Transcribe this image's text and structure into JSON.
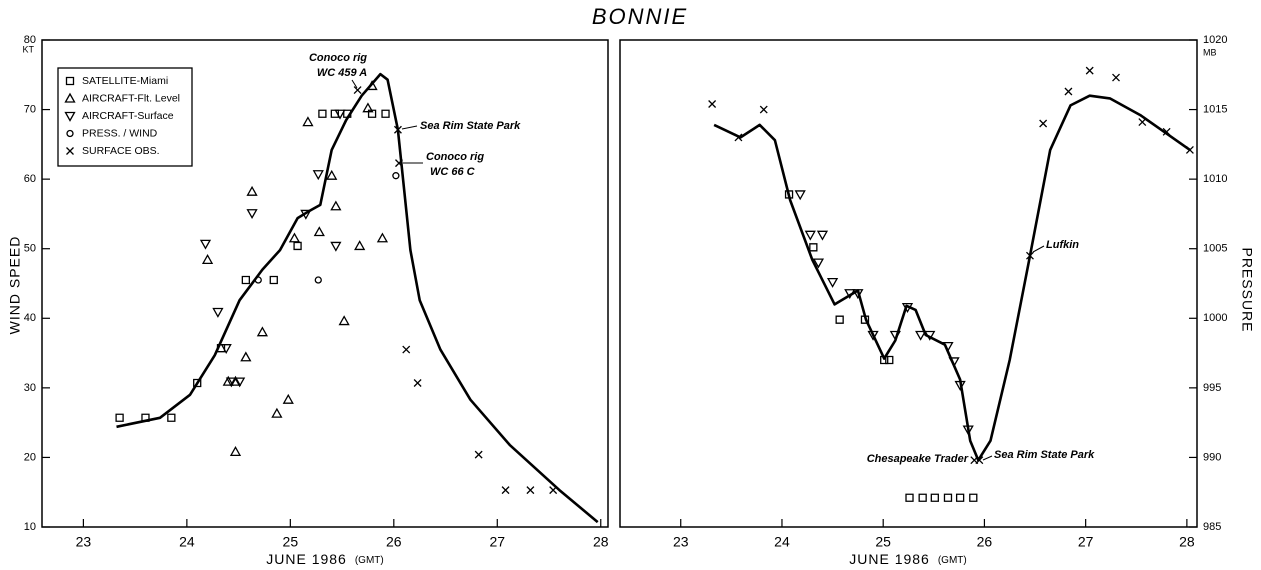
{
  "title": "BONNIE",
  "chart_data": [
    {
      "type": "scatter",
      "xlabel": "JUNE 1986",
      "xlabel_unit": "(GMT)",
      "ylabel": "WIND SPEED",
      "yunit": "KT",
      "xlim": [
        22.6,
        28.07
      ],
      "xticks": [
        23,
        24,
        25,
        26,
        27,
        28
      ],
      "ylim": [
        10,
        80
      ],
      "yticks": [
        10,
        20,
        30,
        40,
        50,
        60,
        70,
        80
      ],
      "yaxis_side": "left",
      "legend": "upper left",
      "series": [
        {
          "name": "SATELLITE-Miami",
          "marker": "square",
          "color": "#000000",
          "x": [
            23.35,
            23.6,
            23.85,
            24.1,
            24.33,
            24.57,
            24.84,
            25.07,
            25.31,
            25.43,
            25.55,
            25.79,
            25.92
          ],
          "values": [
            25.7,
            25.7,
            25.7,
            30.7,
            35.7,
            45.5,
            45.5,
            50.4,
            69.4,
            69.4,
            69.4,
            69.4,
            69.4
          ]
        },
        {
          "name": "AIRCRAFT-Flt. Level",
          "marker": "triangle-up",
          "color": "#000000",
          "x": [
            24.2,
            24.4,
            24.47,
            24.47,
            24.57,
            24.63,
            24.73,
            24.87,
            24.98,
            25.04,
            25.17,
            25.28,
            25.4,
            25.44,
            25.52,
            25.67,
            25.75,
            25.79,
            25.89
          ],
          "values": [
            48.4,
            30.9,
            30.9,
            20.8,
            34.4,
            58.2,
            38.0,
            26.3,
            28.3,
            51.5,
            68.2,
            52.4,
            60.5,
            56.1,
            39.6,
            50.4,
            70.2,
            73.4,
            51.5
          ]
        },
        {
          "name": "AIRCRAFT-Surface",
          "marker": "triangle-down",
          "color": "#000000",
          "x": [
            24.18,
            24.3,
            24.38,
            24.43,
            24.51,
            24.63,
            25.15,
            25.27,
            25.48,
            25.44
          ],
          "values": [
            50.7,
            40.9,
            35.7,
            30.9,
            30.9,
            55.1,
            55.0,
            60.7,
            69.4,
            50.4
          ]
        },
        {
          "name": "PRESS. / WIND",
          "marker": "circle",
          "color": "#000000",
          "x": [
            24.69,
            25.27,
            26.02
          ],
          "values": [
            45.5,
            45.5,
            60.5
          ]
        },
        {
          "name": "SURFACE OBS.",
          "marker": "x",
          "color": "#000000",
          "x": [
            25.65,
            26.04,
            26.05,
            26.12,
            26.23,
            26.82,
            27.08,
            27.32,
            27.54
          ],
          "values": [
            72.8,
            67.1,
            62.3,
            35.5,
            30.7,
            20.4,
            15.3,
            15.3,
            15.3
          ]
        }
      ],
      "curve": {
        "color": "#000000",
        "x": [
          23.32,
          23.74,
          24.03,
          24.27,
          24.51,
          24.73,
          24.9,
          25.07,
          25.17,
          25.29,
          25.4,
          25.54,
          25.69,
          25.87,
          25.94,
          26.04,
          26.1,
          26.16,
          26.25,
          26.45,
          26.74,
          27.12,
          27.6,
          27.97
        ],
        "values": [
          24.4,
          25.7,
          29.0,
          34.7,
          42.6,
          47.0,
          49.8,
          54.4,
          55.3,
          56.3,
          64.2,
          68.5,
          72.0,
          75.1,
          74.3,
          67.1,
          58.4,
          49.8,
          42.6,
          35.5,
          28.3,
          21.8,
          15.3,
          10.7
        ]
      },
      "annotations": [
        "Conoco rig",
        "WC 459 A",
        "Sea Rim State Park",
        "Conoco rig",
        "WC 66 C"
      ]
    },
    {
      "type": "scatter",
      "xlabel": "JUNE 1986",
      "xlabel_unit": "(GMT)",
      "ylabel": "PRESSURE",
      "yunit": "MB",
      "xlim": [
        22.4,
        28.1
      ],
      "xticks": [
        23,
        24,
        25,
        26,
        27,
        28
      ],
      "ylim": [
        985,
        1020
      ],
      "yticks": [
        985,
        990,
        995,
        1000,
        1005,
        1010,
        1015,
        1020
      ],
      "yaxis_side": "right",
      "series": [
        {
          "marker": "square",
          "color": "#000000",
          "x": [
            24.07,
            24.31,
            24.57,
            24.82,
            25.01,
            25.06,
            25.26,
            25.39,
            25.51,
            25.64,
            25.76,
            25.89
          ],
          "values": [
            1008.9,
            1005.1,
            999.9,
            999.9,
            997.0,
            997.0,
            987.1,
            987.1,
            987.1,
            987.1,
            987.1,
            987.1
          ]
        },
        {
          "marker": "triangle-down",
          "color": "#000000",
          "x": [
            24.18,
            24.28,
            24.4,
            24.36,
            24.5,
            24.67,
            24.75,
            24.9,
            25.12,
            25.24,
            25.37,
            25.46,
            25.64,
            25.7,
            25.76,
            25.84
          ],
          "values": [
            1008.9,
            1006.0,
            1006.0,
            1004.0,
            1002.6,
            1001.8,
            1001.8,
            998.8,
            998.8,
            1000.8,
            998.8,
            998.8,
            998.0,
            996.9,
            995.2,
            992.0
          ]
        },
        {
          "marker": "x",
          "color": "#000000",
          "x": [
            23.31,
            23.57,
            23.82,
            25.9,
            25.95,
            26.45,
            26.58,
            26.83,
            27.04,
            27.3,
            27.56,
            27.8,
            28.03
          ],
          "values": [
            1015.4,
            1013.0,
            1015.0,
            989.8,
            989.8,
            1004.5,
            1014.0,
            1016.3,
            1017.8,
            1017.3,
            1014.1,
            1013.4,
            1012.1
          ]
        }
      ],
      "curve": {
        "color": "#000000",
        "x": [
          23.33,
          23.59,
          23.78,
          23.93,
          24.08,
          24.3,
          24.52,
          24.75,
          24.83,
          25.01,
          25.12,
          25.23,
          25.32,
          25.42,
          25.61,
          25.76,
          25.86,
          25.94,
          26.06,
          26.25,
          26.45,
          26.65,
          26.85,
          27.04,
          27.24,
          27.54,
          28.03
        ],
        "values": [
          1013.9,
          1013.0,
          1013.9,
          1012.8,
          1008.5,
          1004.2,
          1001.0,
          1002.0,
          999.9,
          997.1,
          998.4,
          1000.9,
          1000.6,
          998.8,
          998.1,
          995.6,
          991.2,
          989.8,
          991.2,
          997.0,
          1004.5,
          1012.1,
          1015.3,
          1016.0,
          1015.8,
          1014.6,
          1012.1
        ]
      },
      "annotations": [
        "Lufkin",
        "Chesapeake Trader",
        "Sea Rim State Park"
      ]
    }
  ]
}
